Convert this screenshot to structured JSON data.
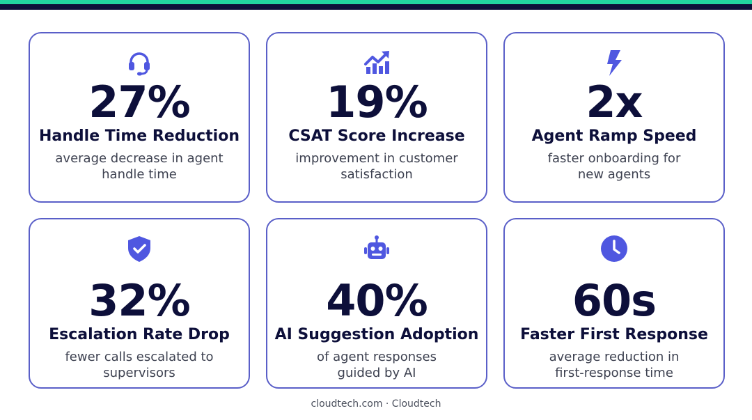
{
  "colors": {
    "navy": "#0d0f3a",
    "accent_green": "#22d3a0",
    "card_border": "#5a5fc8",
    "icon": "#4f57e0"
  },
  "cards": [
    {
      "icon": "headset-icon",
      "value": "27%",
      "title": "Handle Time Reduction",
      "desc_line1": "average decrease in agent",
      "desc_line2": "handle time"
    },
    {
      "icon": "trending-chart-icon",
      "value": "19%",
      "title": "CSAT Score Increase",
      "desc_line1": "improvement in customer",
      "desc_line2": "satisfaction"
    },
    {
      "icon": "lightning-bolt-icon",
      "value": "2x",
      "title": "Agent Ramp Speed",
      "desc_line1": "faster onboarding for",
      "desc_line2": "new agents"
    },
    {
      "icon": "shield-check-icon",
      "value": "32%",
      "title": "Escalation Rate Drop",
      "desc_line1": "fewer calls escalated to",
      "desc_line2": "supervisors"
    },
    {
      "icon": "robot-icon",
      "value": "40%",
      "title": "AI Suggestion Adoption",
      "desc_line1": "of agent responses",
      "desc_line2": "guided by AI"
    },
    {
      "icon": "clock-icon",
      "value": "60s",
      "title": "Faster First Response",
      "desc_line1": "average reduction in",
      "desc_line2": "first-response time"
    }
  ],
  "footer": {
    "text": "cloudtech.com · Cloudtech"
  }
}
